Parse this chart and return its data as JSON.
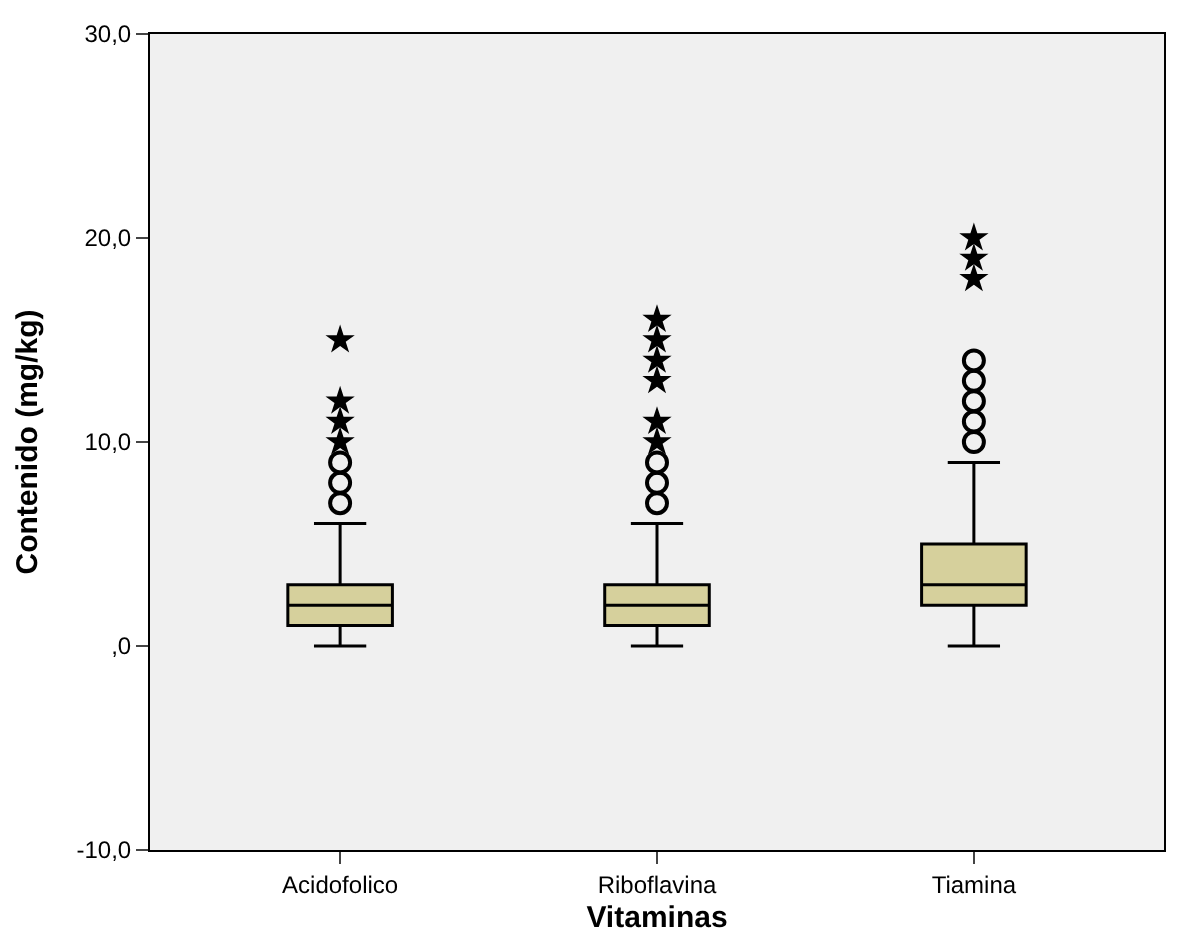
{
  "chart_data": {
    "type": "box",
    "xlabel": "Vitaminas",
    "ylabel": "Contenido (mg/kg)",
    "categories": [
      "Acidofolico",
      "Riboflavina",
      "Tiamina"
    ],
    "color": "#d6d09c",
    "boxes": [
      {
        "low": 0,
        "q1": 1,
        "median": 2,
        "q3": 3,
        "high": 6,
        "outliers": [
          7,
          8,
          9
        ]
      },
      {
        "low": 0,
        "q1": 1,
        "median": 2,
        "q3": 3,
        "high": 6,
        "outliers": [
          7,
          8,
          9
        ]
      },
      {
        "low": 0,
        "q1": 2,
        "median": 3,
        "q3": 5,
        "high": 9,
        "outliers": [
          10,
          11,
          12,
          13,
          14
        ]
      }
    ],
    "series": [
      {
        "type": "scatter",
        "marker": "star",
        "color": "#000000",
        "x": [
          "Acidofolico",
          "Acidofolico",
          "Acidofolico",
          "Acidofolico",
          "Riboflavina",
          "Riboflavina",
          "Riboflavina",
          "Riboflavina",
          "Riboflavina",
          "Riboflavina",
          "Tiamina",
          "Tiamina",
          "Tiamina"
        ],
        "values": [
          10,
          11,
          12,
          15,
          10,
          11,
          13,
          14,
          15,
          16,
          18,
          19,
          20
        ]
      }
    ],
    "ylim": [
      -10,
      30
    ],
    "yticks": [
      {
        "value": -10,
        "label": "-10,0"
      },
      {
        "value": 0,
        "label": ",0"
      },
      {
        "value": 10,
        "label": "10,0"
      },
      {
        "value": 20,
        "label": "20,0"
      },
      {
        "value": 30,
        "label": "30,0"
      }
    ],
    "grid": false,
    "legend": false
  }
}
